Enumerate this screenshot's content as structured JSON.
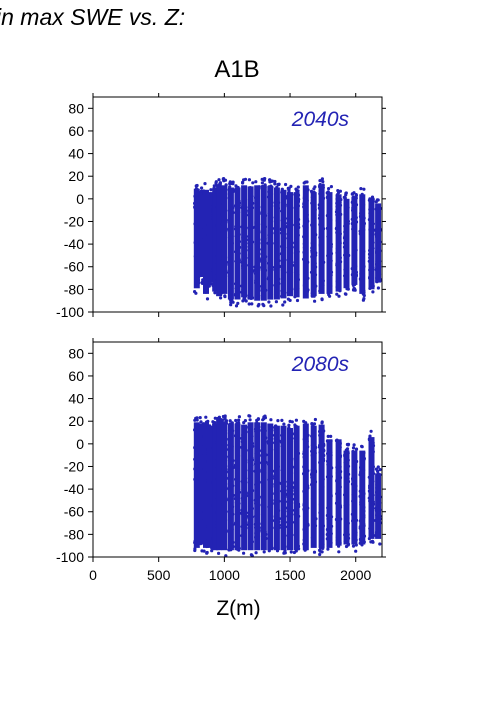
{
  "header": {
    "text": "in max SWE vs. Z:"
  },
  "figure_title": "A1B",
  "chart_data": [
    {
      "type": "scatter",
      "panel_label": "2040s",
      "xlabel": "",
      "ylabel": "",
      "xlim": [
        0,
        2200
      ],
      "ylim": [
        -100,
        90
      ],
      "yticks": [
        80,
        60,
        40,
        20,
        0,
        -20,
        -40,
        -60,
        -80,
        -100
      ],
      "x_tick_labels_shown": false,
      "color": "#2323b4",
      "note_points": "dense point cloud sampled per visible column",
      "columns": [
        {
          "x": 790,
          "ymin": -85,
          "ymax": 15
        },
        {
          "x": 830,
          "ymin": -75,
          "ymax": 12
        },
        {
          "x": 860,
          "ymin": -90,
          "ymax": 14
        },
        {
          "x": 890,
          "ymin": -78,
          "ymax": 12
        },
        {
          "x": 930,
          "ymin": -88,
          "ymax": 16
        },
        {
          "x": 960,
          "ymin": -92,
          "ymax": 18
        },
        {
          "x": 1000,
          "ymin": -90,
          "ymax": 18
        },
        {
          "x": 1050,
          "ymin": -95,
          "ymax": 16
        },
        {
          "x": 1100,
          "ymin": -95,
          "ymax": 16
        },
        {
          "x": 1150,
          "ymin": -93,
          "ymax": 18
        },
        {
          "x": 1200,
          "ymin": -95,
          "ymax": 17
        },
        {
          "x": 1250,
          "ymin": -96,
          "ymax": 18
        },
        {
          "x": 1300,
          "ymin": -96,
          "ymax": 18
        },
        {
          "x": 1350,
          "ymin": -95,
          "ymax": 17
        },
        {
          "x": 1400,
          "ymin": -95,
          "ymax": 16
        },
        {
          "x": 1450,
          "ymin": -94,
          "ymax": 14
        },
        {
          "x": 1500,
          "ymin": -92,
          "ymax": 12
        },
        {
          "x": 1550,
          "ymin": -93,
          "ymax": 12
        },
        {
          "x": 1620,
          "ymin": -94,
          "ymax": 18
        },
        {
          "x": 1680,
          "ymin": -92,
          "ymax": 12
        },
        {
          "x": 1740,
          "ymin": -90,
          "ymax": 18
        },
        {
          "x": 1800,
          "ymin": -90,
          "ymax": 12
        },
        {
          "x": 1870,
          "ymin": -88,
          "ymax": 10
        },
        {
          "x": 1930,
          "ymin": -85,
          "ymax": 6
        },
        {
          "x": 1990,
          "ymin": -82,
          "ymax": 8
        },
        {
          "x": 2050,
          "ymin": -90,
          "ymax": 10
        },
        {
          "x": 2120,
          "ymin": -86,
          "ymax": 6
        },
        {
          "x": 2170,
          "ymin": -80,
          "ymax": 2
        }
      ]
    },
    {
      "type": "scatter",
      "panel_label": "2080s",
      "xlabel": "Z(m)",
      "ylabel": "",
      "xlim": [
        0,
        2200
      ],
      "ylim": [
        -100,
        90
      ],
      "xticks": [
        0,
        500,
        1000,
        1500,
        2000
      ],
      "yticks": [
        80,
        60,
        40,
        20,
        0,
        -20,
        -40,
        -60,
        -80,
        -100
      ],
      "color": "#2323b4",
      "note_points": "dense point cloud sampled per visible column",
      "columns": [
        {
          "x": 790,
          "ymin": -98,
          "ymax": 25
        },
        {
          "x": 830,
          "ymin": -95,
          "ymax": 24
        },
        {
          "x": 860,
          "ymin": -98,
          "ymax": 25
        },
        {
          "x": 890,
          "ymin": -98,
          "ymax": 22
        },
        {
          "x": 930,
          "ymin": -100,
          "ymax": 24
        },
        {
          "x": 960,
          "ymin": -100,
          "ymax": 28
        },
        {
          "x": 1000,
          "ymin": -100,
          "ymax": 26
        },
        {
          "x": 1050,
          "ymin": -100,
          "ymax": 24
        },
        {
          "x": 1100,
          "ymin": -100,
          "ymax": 24
        },
        {
          "x": 1150,
          "ymin": -100,
          "ymax": 23
        },
        {
          "x": 1200,
          "ymin": -100,
          "ymax": 25
        },
        {
          "x": 1250,
          "ymin": -100,
          "ymax": 25
        },
        {
          "x": 1300,
          "ymin": -100,
          "ymax": 25
        },
        {
          "x": 1350,
          "ymin": -100,
          "ymax": 24
        },
        {
          "x": 1400,
          "ymin": -100,
          "ymax": 22
        },
        {
          "x": 1450,
          "ymin": -100,
          "ymax": 22
        },
        {
          "x": 1500,
          "ymin": -100,
          "ymax": 20
        },
        {
          "x": 1550,
          "ymin": -100,
          "ymax": 22
        },
        {
          "x": 1620,
          "ymin": -100,
          "ymax": 24
        },
        {
          "x": 1680,
          "ymin": -98,
          "ymax": 22
        },
        {
          "x": 1740,
          "ymin": -98,
          "ymax": 23
        },
        {
          "x": 1800,
          "ymin": -98,
          "ymax": 10
        },
        {
          "x": 1870,
          "ymin": -96,
          "ymax": 10
        },
        {
          "x": 1930,
          "ymin": -95,
          "ymax": 0
        },
        {
          "x": 1990,
          "ymin": -95,
          "ymax": 0
        },
        {
          "x": 2050,
          "ymin": -95,
          "ymax": 0
        },
        {
          "x": 2120,
          "ymin": -90,
          "ymax": 12
        },
        {
          "x": 2170,
          "ymin": -90,
          "ymax": -20
        }
      ]
    }
  ]
}
